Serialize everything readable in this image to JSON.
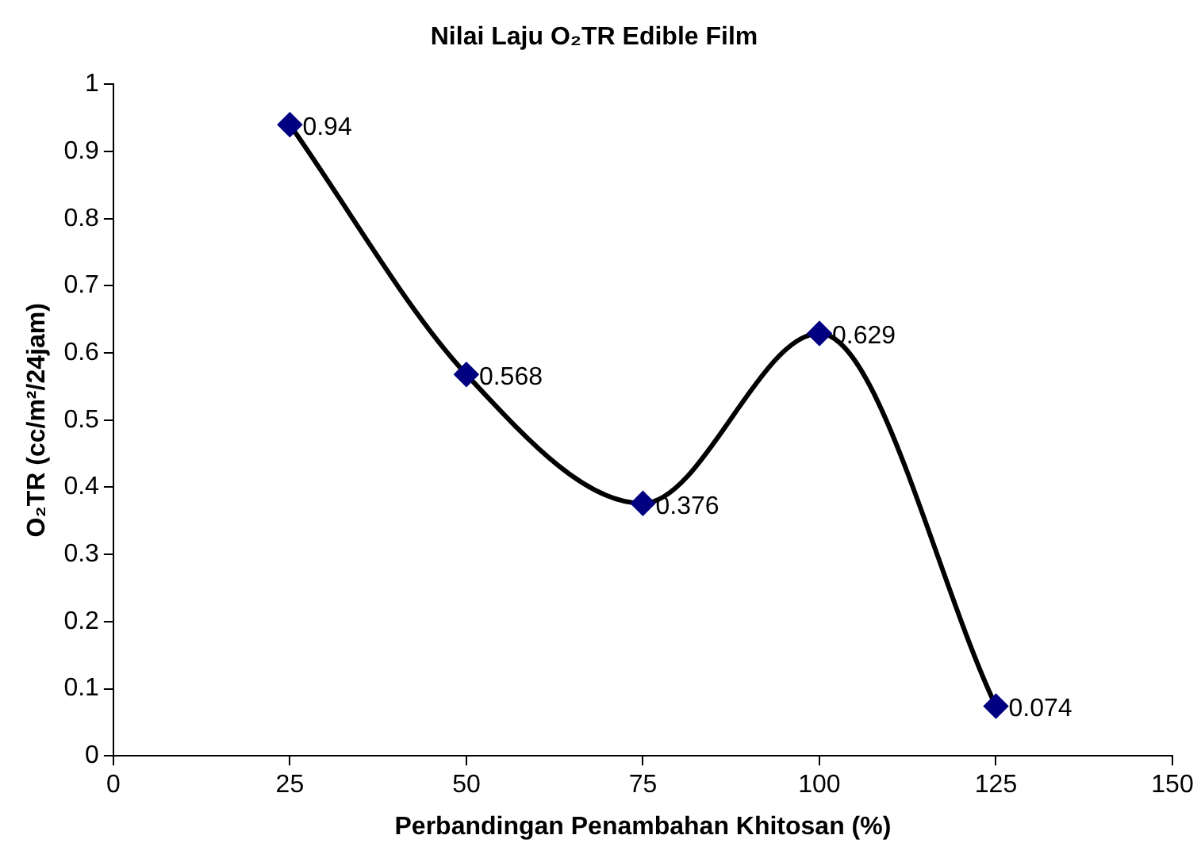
{
  "chart_data": {
    "type": "line",
    "title": "Nilai Laju O₂TR Edible Film",
    "xlabel": "Perbandingan Penambahan Khitosan (%)",
    "ylabel": "O₂TR (cc/m²/24jam)",
    "x": [
      25,
      50,
      75,
      100,
      125
    ],
    "series": [
      {
        "color": "#000000",
        "colors": [
          "#000080",
          "#000080",
          "#000080",
          "#000080",
          "#000080"
        ],
        "values": [
          0.94,
          0.568,
          0.376,
          0.629,
          0.074
        ]
      }
    ],
    "xlim": [
      0,
      150
    ],
    "xticks": [
      0,
      25,
      50,
      75,
      100,
      125,
      150
    ],
    "ylim": [
      0,
      1
    ],
    "yticks": [
      0,
      0.1,
      0.2,
      0.3,
      0.4,
      0.5,
      0.6,
      0.7,
      0.8,
      0.9,
      1
    ],
    "grid": false,
    "legend": false,
    "marker": "diamond",
    "line_style": "solid",
    "data_labels": true
  }
}
